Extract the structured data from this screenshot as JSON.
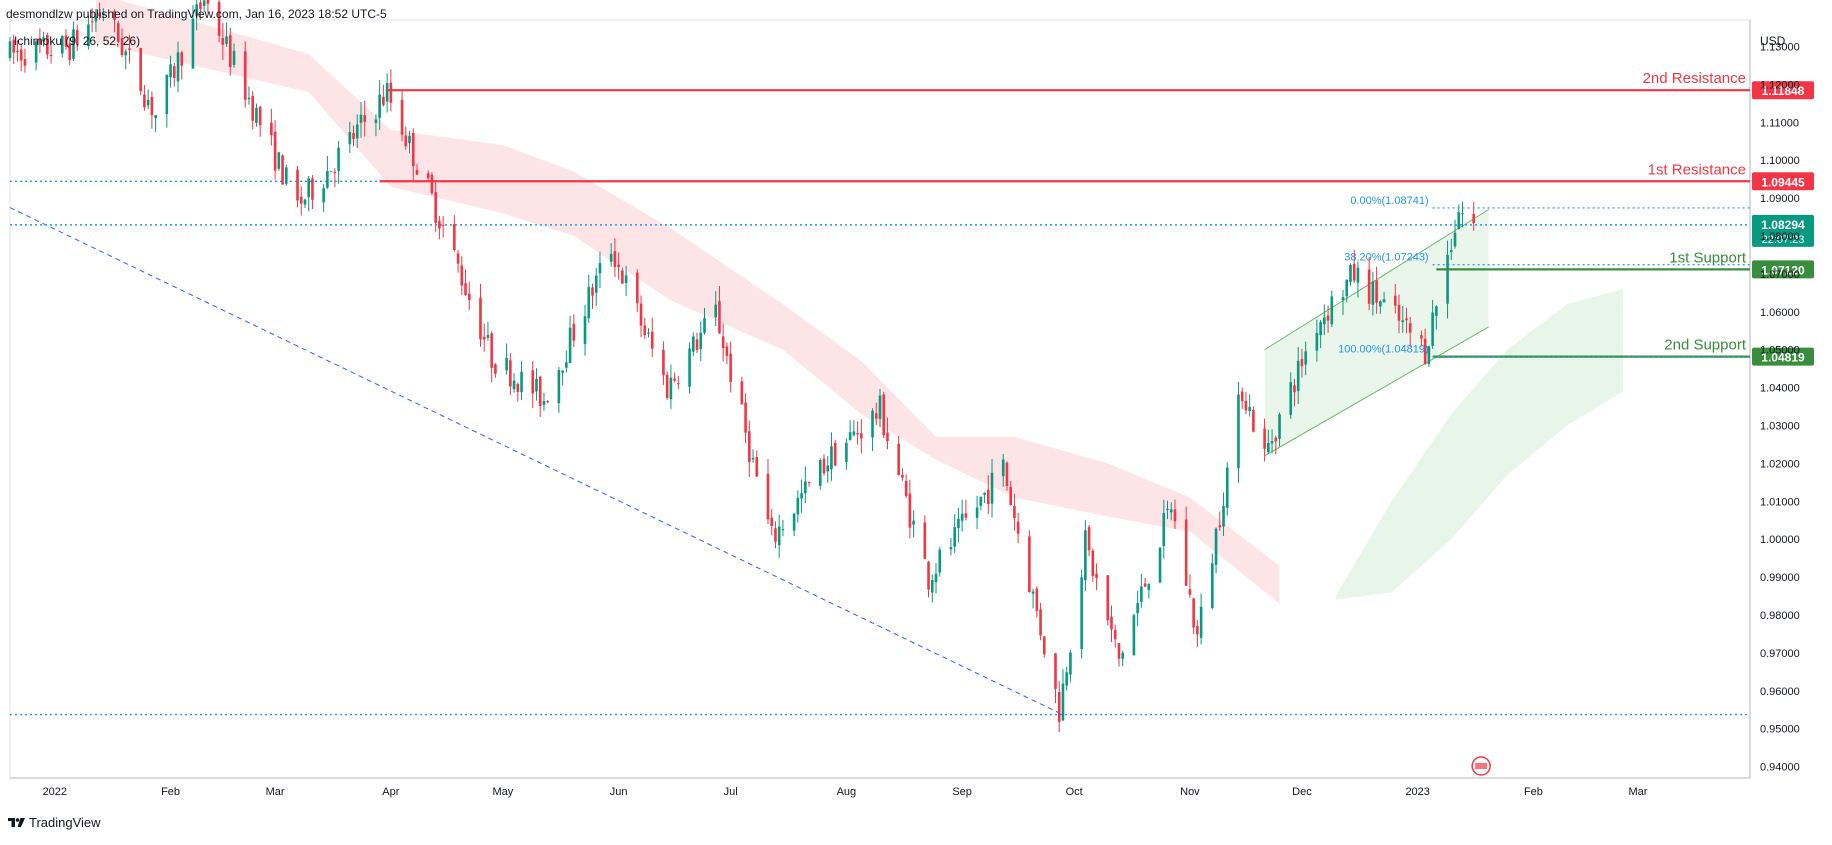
{
  "header": {
    "published": "desmondlzw published on TradingView.com, Jan 16, 2023 18:52 UTC-5",
    "indicator": "Ichimoku (9, 26, 52, 26)"
  },
  "footer": {
    "brand": "TradingView",
    "logo_icon": "tradingview-logo-icon"
  },
  "colors": {
    "up": "#089981",
    "down": "#f23645",
    "resistance": "#f23645",
    "support": "#388e3c",
    "cloud_bear": "#fde4e6",
    "cloud_bull": "#e8f5e9",
    "channel": "#e8f5e9",
    "trend": "#2962ff",
    "dotted": "#2196f3",
    "last_price": "#089981"
  },
  "chart_data": {
    "type": "candlestick",
    "symbol_currency": "USD",
    "y_range": [
      0.937,
      1.137
    ],
    "y_ticks": [
      "1.13000",
      "1.12000",
      "1.11000",
      "1.10000",
      "1.09000",
      "1.08000",
      "1.07000",
      "1.06000",
      "1.05000",
      "1.04000",
      "1.03000",
      "1.02000",
      "1.01000",
      "1.00000",
      "0.99000",
      "0.98000",
      "0.97000",
      "0.96000",
      "0.95000",
      "0.94000"
    ],
    "x_range": [
      "2021-12-20",
      "2023-03-31"
    ],
    "x_ticks": [
      {
        "label": "2022",
        "date": "2022-01-01"
      },
      {
        "label": "Feb",
        "date": "2022-02-01"
      },
      {
        "label": "Mar",
        "date": "2022-03-01"
      },
      {
        "label": "Apr",
        "date": "2022-04-01"
      },
      {
        "label": "May",
        "date": "2022-05-01"
      },
      {
        "label": "Jun",
        "date": "2022-06-01"
      },
      {
        "label": "Jul",
        "date": "2022-07-01"
      },
      {
        "label": "Aug",
        "date": "2022-08-01"
      },
      {
        "label": "Sep",
        "date": "2022-09-01"
      },
      {
        "label": "Oct",
        "date": "2022-10-01"
      },
      {
        "label": "Nov",
        "date": "2022-11-01"
      },
      {
        "label": "Dec",
        "date": "2022-12-01"
      },
      {
        "label": "2023",
        "date": "2023-01-01"
      },
      {
        "label": "Feb",
        "date": "2023-02-01"
      },
      {
        "label": "Mar",
        "date": "2023-03-01"
      }
    ],
    "price_path": [
      [
        "2021-12-20",
        1.128
      ],
      [
        "2022-01-05",
        1.13
      ],
      [
        "2022-01-14",
        1.14
      ],
      [
        "2022-01-28",
        1.112
      ],
      [
        "2022-02-10",
        1.143
      ],
      [
        "2022-02-24",
        1.112
      ],
      [
        "2022-03-07",
        1.088
      ],
      [
        "2022-03-14",
        1.096
      ],
      [
        "2022-03-31",
        1.118
      ],
      [
        "2022-04-14",
        1.085
      ],
      [
        "2022-04-28",
        1.048
      ],
      [
        "2022-05-12",
        1.037
      ],
      [
        "2022-05-30",
        1.077
      ],
      [
        "2022-06-14",
        1.04
      ],
      [
        "2022-06-27",
        1.06
      ],
      [
        "2022-07-12",
        1.0
      ],
      [
        "2022-07-27",
        1.021
      ],
      [
        "2022-08-10",
        1.034
      ],
      [
        "2022-08-23",
        0.99
      ],
      [
        "2022-09-12",
        1.019
      ],
      [
        "2022-09-27",
        0.955
      ],
      [
        "2022-10-04",
        0.999
      ],
      [
        "2022-10-13",
        0.968
      ],
      [
        "2022-10-27",
        1.009
      ],
      [
        "2022-11-03",
        0.974
      ],
      [
        "2022-11-15",
        1.04
      ],
      [
        "2022-11-21",
        1.022
      ],
      [
        "2022-12-05",
        1.057
      ],
      [
        "2022-12-15",
        1.07
      ],
      [
        "2023-01-03",
        1.05
      ],
      [
        "2023-01-12",
        1.087
      ],
      [
        "2023-01-16",
        1.083
      ]
    ],
    "ichimoku_cloud": [
      {
        "sentiment": "bearish",
        "start": "2022-01-12",
        "end": "2022-11-25",
        "top": [
          [
            "2022-01-12",
            1.144
          ],
          [
            "2022-03-10",
            1.128
          ],
          [
            "2022-04-01",
            1.108
          ],
          [
            "2022-05-01",
            1.104
          ],
          [
            "2022-05-20",
            1.097
          ],
          [
            "2022-06-15",
            1.082
          ],
          [
            "2022-07-15",
            1.062
          ],
          [
            "2022-08-05",
            1.047
          ],
          [
            "2022-08-25",
            1.027
          ],
          [
            "2022-09-15",
            1.027
          ],
          [
            "2022-10-10",
            1.02
          ],
          [
            "2022-11-01",
            1.011
          ],
          [
            "2022-11-25",
            0.993
          ]
        ],
        "bottom": [
          [
            "2022-01-12",
            1.131
          ],
          [
            "2022-03-10",
            1.118
          ],
          [
            "2022-04-01",
            1.093
          ],
          [
            "2022-05-01",
            1.086
          ],
          [
            "2022-05-20",
            1.08
          ],
          [
            "2022-06-15",
            1.063
          ],
          [
            "2022-07-15",
            1.05
          ],
          [
            "2022-08-05",
            1.033
          ],
          [
            "2022-08-25",
            1.021
          ],
          [
            "2022-09-15",
            1.011
          ],
          [
            "2022-10-10",
            1.006
          ],
          [
            "2022-11-01",
            1.002
          ],
          [
            "2022-11-25",
            0.983
          ]
        ]
      },
      {
        "sentiment": "bullish",
        "start": "2022-12-10",
        "end": "2023-02-25",
        "top": [
          [
            "2022-12-10",
            0.985
          ],
          [
            "2022-12-25",
            1.01
          ],
          [
            "2023-01-10",
            1.033
          ],
          [
            "2023-01-25",
            1.05
          ],
          [
            "2023-02-10",
            1.062
          ],
          [
            "2023-02-25",
            1.066
          ]
        ],
        "bottom": [
          [
            "2022-12-10",
            0.984
          ],
          [
            "2022-12-25",
            0.986
          ],
          [
            "2023-01-10",
            1.0
          ],
          [
            "2023-01-25",
            1.017
          ],
          [
            "2023-02-10",
            1.03
          ],
          [
            "2023-02-25",
            1.039
          ]
        ]
      }
    ],
    "horizontal_levels": [
      {
        "name": "2nd Resistance",
        "value": 1.11848,
        "label": "1.11848",
        "start": "2022-03-31",
        "style": "resistance"
      },
      {
        "name": "1st Resistance",
        "value": 1.09445,
        "label": "1.09445",
        "start": "2022-03-29",
        "style": "resistance"
      },
      {
        "name": "1st Support",
        "value": 1.0712,
        "label": "1.07120",
        "start": "2023-01-06",
        "style": "support"
      },
      {
        "name": "2nd Support",
        "value": 1.04819,
        "label": "1.04819",
        "start": "2023-01-05",
        "style": "support"
      }
    ],
    "fibonacci": [
      {
        "label": "0.00%(1.08741)",
        "value": 1.08741
      },
      {
        "label": "38.20%(1.07243)",
        "value": 1.07243
      },
      {
        "label": "100.00%(1.04819)",
        "value": 1.04819
      }
    ],
    "dotted_levels": [
      1.09445,
      1.08294,
      0.95374
    ],
    "trendline": {
      "from": [
        "2021-12-20",
        1.0875
      ],
      "to": [
        "2022-09-28",
        0.9537
      ]
    },
    "channel": {
      "lower": [
        [
          "2022-11-21",
          1.022
        ],
        [
          "2023-01-20",
          1.056
        ]
      ],
      "upper": [
        [
          "2022-11-21",
          1.05
        ],
        [
          "2023-01-20",
          1.087
        ]
      ]
    },
    "last_price": {
      "value": 1.08294,
      "label": "1.08294",
      "countdown": "22:07:23"
    }
  }
}
